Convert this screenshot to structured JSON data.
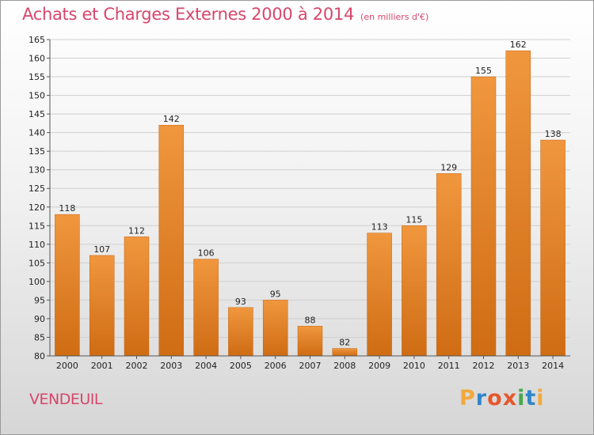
{
  "chart_data": {
    "type": "bar",
    "title": "Achats et Charges Externes 2000 à 2014",
    "subtitle": "(en milliers d'€)",
    "xlabel": "",
    "ylabel": "",
    "categories": [
      "2000",
      "2001",
      "2002",
      "2003",
      "2004",
      "2005",
      "2006",
      "2007",
      "2008",
      "2009",
      "2010",
      "2011",
      "2012",
      "2013",
      "2014"
    ],
    "values": [
      118,
      107,
      112,
      142,
      106,
      93,
      95,
      88,
      82,
      113,
      115,
      129,
      155,
      162,
      138
    ],
    "ylim": [
      80,
      165
    ],
    "ytick_step": 5,
    "grid": true,
    "bar_color": "#f0973e",
    "bar_color_dark": "#cf6c14"
  },
  "footer": {
    "place": "VENDEUIL",
    "logo": "Proxiti",
    "logo_colors": [
      "#f2a93b",
      "#2f86c8",
      "#e6572c",
      "#e6572c",
      "#4aa84a",
      "#2f86c8",
      "#f2a93b"
    ]
  }
}
